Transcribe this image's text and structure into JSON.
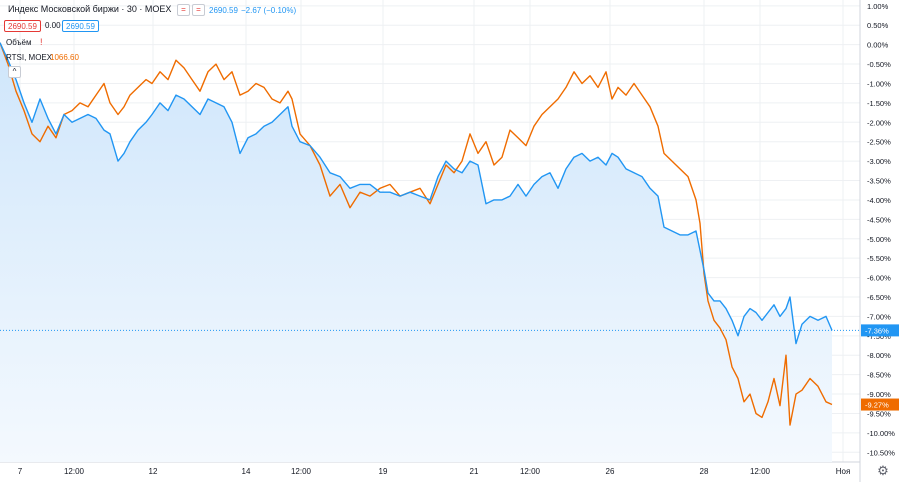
{
  "header": {
    "symbol": "Индекс Московской биржи · 30 · MOEX",
    "last_value": "2690.59",
    "change": "−2.67 (−0.10%)",
    "sell_price": "2690.59",
    "spread": "0.00",
    "buy_price": "2690.59",
    "volume_label": "Объём",
    "compare_label": "RTSI, MOEX",
    "compare_value": "1066.60",
    "collapse_glyph": "^"
  },
  "colors": {
    "moex": "#2196f3",
    "rtsi": "#ef6c00",
    "grid": "#eef0f3",
    "axis_text": "#131722",
    "fill_top": "#cfe6fb",
    "fill_bottom": "#f4f9fe"
  },
  "chart_data": {
    "type": "line",
    "x_tick_labels": [
      "7",
      "12:00",
      "12",
      "14",
      "12:00",
      "19",
      "21",
      "12:00",
      "26",
      "28",
      "12:00",
      "Ноя"
    ],
    "y_tick_labels": [
      "1.00%",
      "0.50%",
      "0.00%",
      "-0.50%",
      "-1.00%",
      "-1.50%",
      "-2.00%",
      "-2.50%",
      "-3.00%",
      "-3.50%",
      "-4.00%",
      "-4.50%",
      "-5.00%",
      "-5.50%",
      "-6.00%",
      "-6.50%",
      "-7.00%",
      "-7.50%",
      "-8.00%",
      "-8.50%",
      "-9.00%",
      "-9.50%",
      "-10.00%",
      "-10.50%"
    ],
    "y_ticks": [
      1.0,
      0.5,
      0.0,
      -0.5,
      -1.0,
      -1.5,
      -2.0,
      -2.5,
      -3.0,
      -3.5,
      -4.0,
      -4.5,
      -5.0,
      -5.5,
      -6.0,
      -6.5,
      -7.0,
      -7.5,
      -8.0,
      -8.5,
      -9.0,
      -9.5,
      -10.0,
      -10.5
    ],
    "ylim": [
      1.15,
      -10.75
    ],
    "x_range": [
      0,
      860
    ],
    "y_unit": "%",
    "grid": true,
    "series": [
      {
        "name": "Индекс Московской биржи",
        "last_label": "-7.36%",
        "points": [
          [
            0,
            0.05
          ],
          [
            8,
            -0.4
          ],
          [
            16,
            -0.9
          ],
          [
            24,
            -1.5
          ],
          [
            32,
            -2.0
          ],
          [
            40,
            -1.4
          ],
          [
            48,
            -1.9
          ],
          [
            56,
            -2.3
          ],
          [
            64,
            -1.8
          ],
          [
            72,
            -2.0
          ],
          [
            80,
            -1.9
          ],
          [
            88,
            -1.8
          ],
          [
            96,
            -1.9
          ],
          [
            104,
            -2.2
          ],
          [
            110,
            -2.3
          ],
          [
            118,
            -3.0
          ],
          [
            124,
            -2.8
          ],
          [
            130,
            -2.5
          ],
          [
            138,
            -2.2
          ],
          [
            146,
            -2.0
          ],
          [
            152,
            -1.8
          ],
          [
            160,
            -1.5
          ],
          [
            168,
            -1.7
          ],
          [
            176,
            -1.3
          ],
          [
            184,
            -1.4
          ],
          [
            192,
            -1.6
          ],
          [
            200,
            -1.8
          ],
          [
            208,
            -1.4
          ],
          [
            216,
            -1.5
          ],
          [
            224,
            -1.6
          ],
          [
            232,
            -2.0
          ],
          [
            240,
            -2.8
          ],
          [
            248,
            -2.4
          ],
          [
            256,
            -2.3
          ],
          [
            264,
            -2.1
          ],
          [
            272,
            -2.0
          ],
          [
            280,
            -1.8
          ],
          [
            288,
            -1.6
          ],
          [
            292,
            -2.1
          ],
          [
            300,
            -2.5
          ],
          [
            310,
            -2.6
          ],
          [
            320,
            -2.9
          ],
          [
            330,
            -3.3
          ],
          [
            340,
            -3.4
          ],
          [
            350,
            -3.7
          ],
          [
            360,
            -3.6
          ],
          [
            370,
            -3.6
          ],
          [
            380,
            -3.8
          ],
          [
            390,
            -3.8
          ],
          [
            400,
            -3.9
          ],
          [
            410,
            -3.8
          ],
          [
            420,
            -3.9
          ],
          [
            430,
            -4.0
          ],
          [
            438,
            -3.4
          ],
          [
            446,
            -3.0
          ],
          [
            454,
            -3.2
          ],
          [
            462,
            -3.3
          ],
          [
            470,
            -3.0
          ],
          [
            478,
            -3.1
          ],
          [
            486,
            -4.1
          ],
          [
            494,
            -4.0
          ],
          [
            502,
            -4.0
          ],
          [
            510,
            -3.9
          ],
          [
            518,
            -3.6
          ],
          [
            526,
            -3.9
          ],
          [
            534,
            -3.6
          ],
          [
            542,
            -3.4
          ],
          [
            550,
            -3.3
          ],
          [
            558,
            -3.7
          ],
          [
            566,
            -3.2
          ],
          [
            574,
            -2.9
          ],
          [
            582,
            -2.8
          ],
          [
            590,
            -3.0
          ],
          [
            598,
            -2.9
          ],
          [
            606,
            -3.1
          ],
          [
            612,
            -2.8
          ],
          [
            618,
            -2.9
          ],
          [
            626,
            -3.2
          ],
          [
            634,
            -3.3
          ],
          [
            642,
            -3.4
          ],
          [
            650,
            -3.7
          ],
          [
            658,
            -3.9
          ],
          [
            664,
            -4.7
          ],
          [
            672,
            -4.8
          ],
          [
            680,
            -4.9
          ],
          [
            688,
            -4.9
          ],
          [
            696,
            -4.8
          ],
          [
            700,
            -5.3
          ],
          [
            704,
            -5.8
          ],
          [
            708,
            -6.4
          ],
          [
            714,
            -6.6
          ],
          [
            720,
            -6.6
          ],
          [
            726,
            -6.8
          ],
          [
            732,
            -7.1
          ],
          [
            738,
            -7.5
          ],
          [
            744,
            -7.0
          ],
          [
            750,
            -6.8
          ],
          [
            756,
            -6.9
          ],
          [
            762,
            -7.1
          ],
          [
            768,
            -6.9
          ],
          [
            774,
            -6.7
          ],
          [
            780,
            -7.0
          ],
          [
            786,
            -6.8
          ],
          [
            790,
            -6.5
          ],
          [
            796,
            -7.7
          ],
          [
            802,
            -7.2
          ],
          [
            810,
            -7.0
          ],
          [
            818,
            -7.1
          ],
          [
            826,
            -7.0
          ],
          [
            832,
            -7.36
          ]
        ]
      },
      {
        "name": "RTSI",
        "last_label": "-9.27%",
        "points": [
          [
            0,
            0.05
          ],
          [
            8,
            -0.5
          ],
          [
            16,
            -1.2
          ],
          [
            24,
            -1.7
          ],
          [
            32,
            -2.3
          ],
          [
            40,
            -2.5
          ],
          [
            48,
            -2.1
          ],
          [
            56,
            -2.4
          ],
          [
            64,
            -1.8
          ],
          [
            72,
            -1.7
          ],
          [
            80,
            -1.5
          ],
          [
            88,
            -1.6
          ],
          [
            96,
            -1.3
          ],
          [
            104,
            -1.0
          ],
          [
            110,
            -1.5
          ],
          [
            118,
            -1.8
          ],
          [
            124,
            -1.6
          ],
          [
            130,
            -1.3
          ],
          [
            138,
            -1.1
          ],
          [
            146,
            -0.9
          ],
          [
            152,
            -1.0
          ],
          [
            160,
            -0.7
          ],
          [
            168,
            -0.9
          ],
          [
            176,
            -0.4
          ],
          [
            184,
            -0.6
          ],
          [
            192,
            -0.9
          ],
          [
            200,
            -1.2
          ],
          [
            208,
            -0.7
          ],
          [
            216,
            -0.5
          ],
          [
            224,
            -0.9
          ],
          [
            232,
            -0.7
          ],
          [
            240,
            -1.3
          ],
          [
            248,
            -1.2
          ],
          [
            256,
            -1.0
          ],
          [
            264,
            -1.1
          ],
          [
            272,
            -1.4
          ],
          [
            280,
            -1.5
          ],
          [
            288,
            -1.2
          ],
          [
            292,
            -1.4
          ],
          [
            300,
            -2.3
          ],
          [
            310,
            -2.6
          ],
          [
            320,
            -3.1
          ],
          [
            330,
            -3.9
          ],
          [
            340,
            -3.6
          ],
          [
            350,
            -4.2
          ],
          [
            360,
            -3.8
          ],
          [
            370,
            -3.9
          ],
          [
            380,
            -3.7
          ],
          [
            390,
            -3.6
          ],
          [
            400,
            -3.9
          ],
          [
            410,
            -3.8
          ],
          [
            420,
            -3.7
          ],
          [
            430,
            -4.1
          ],
          [
            438,
            -3.6
          ],
          [
            446,
            -3.1
          ],
          [
            454,
            -3.3
          ],
          [
            462,
            -3.0
          ],
          [
            470,
            -2.3
          ],
          [
            478,
            -2.8
          ],
          [
            486,
            -2.5
          ],
          [
            494,
            -3.1
          ],
          [
            502,
            -2.9
          ],
          [
            510,
            -2.2
          ],
          [
            518,
            -2.4
          ],
          [
            526,
            -2.6
          ],
          [
            534,
            -2.1
          ],
          [
            542,
            -1.8
          ],
          [
            550,
            -1.6
          ],
          [
            558,
            -1.4
          ],
          [
            566,
            -1.1
          ],
          [
            574,
            -0.7
          ],
          [
            582,
            -1.0
          ],
          [
            590,
            -0.8
          ],
          [
            598,
            -1.1
          ],
          [
            606,
            -0.7
          ],
          [
            612,
            -1.4
          ],
          [
            618,
            -1.1
          ],
          [
            626,
            -1.3
          ],
          [
            634,
            -1.0
          ],
          [
            642,
            -1.3
          ],
          [
            650,
            -1.6
          ],
          [
            658,
            -2.1
          ],
          [
            664,
            -2.8
          ],
          [
            672,
            -3.0
          ],
          [
            680,
            -3.2
          ],
          [
            688,
            -3.4
          ],
          [
            696,
            -4.0
          ],
          [
            700,
            -4.6
          ],
          [
            704,
            -5.9
          ],
          [
            708,
            -6.6
          ],
          [
            714,
            -7.1
          ],
          [
            720,
            -7.3
          ],
          [
            726,
            -7.6
          ],
          [
            732,
            -8.3
          ],
          [
            738,
            -8.6
          ],
          [
            744,
            -9.2
          ],
          [
            750,
            -9.0
          ],
          [
            756,
            -9.5
          ],
          [
            762,
            -9.6
          ],
          [
            768,
            -9.2
          ],
          [
            774,
            -8.6
          ],
          [
            780,
            -9.3
          ],
          [
            786,
            -8.0
          ],
          [
            790,
            -9.8
          ],
          [
            796,
            -9.0
          ],
          [
            802,
            -8.9
          ],
          [
            810,
            -8.6
          ],
          [
            818,
            -8.8
          ],
          [
            826,
            -9.2
          ],
          [
            832,
            -9.27
          ]
        ]
      }
    ]
  }
}
